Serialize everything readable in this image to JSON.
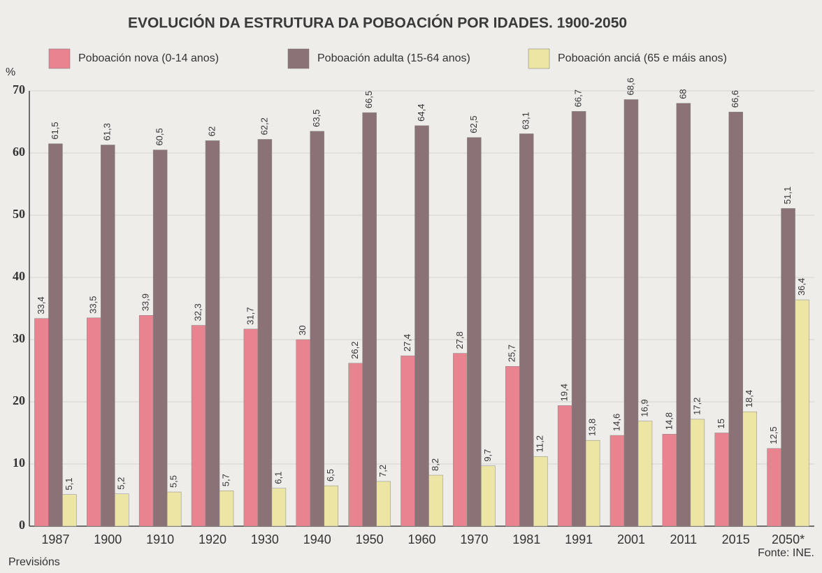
{
  "chart_data": {
    "type": "bar",
    "title": "EVOLUCIÓN DA ESTRUTURA DA POBOACIÓN POR IDADES. 1900-2050",
    "y_label": "%",
    "note": "Previsións",
    "source": "Fonte: INE.",
    "categories": [
      "1987",
      "1900",
      "1910",
      "1920",
      "1930",
      "1940",
      "1950",
      "1960",
      "1970",
      "1981",
      "1991",
      "2001",
      "2011",
      "2015",
      "2050*"
    ],
    "series": [
      {
        "name": "Poboación nova (0-14 anos)",
        "color": "#e8848f",
        "values": [
          33.4,
          33.5,
          33.9,
          32.3,
          31.7,
          30,
          26.2,
          27.4,
          27.8,
          25.7,
          19.4,
          14.6,
          14.8,
          15,
          12.5
        ],
        "value_labels": [
          "33,4",
          "33,5",
          "33,9",
          "32,3",
          "31,7",
          "30",
          "26,2",
          "27,4",
          "27,8",
          "25,7",
          "19,4",
          "14,6",
          "14,8",
          "15",
          "12,5"
        ]
      },
      {
        "name": "Poboación adulta (15-64 anos)",
        "color": "#8a7277",
        "values": [
          61.5,
          61.3,
          60.5,
          62,
          62.2,
          63.5,
          66.5,
          64.4,
          62.5,
          63.1,
          66.7,
          68.6,
          68,
          66.6,
          51.1
        ],
        "value_labels": [
          "61,5",
          "61,3",
          "60,5",
          "62",
          "62,2",
          "63,5",
          "66,5",
          "64,4",
          "62,5",
          "63,1",
          "66,7",
          "68,6",
          "68",
          "66,6",
          "51,1"
        ]
      },
      {
        "name": "Poboación anciá (65 e máis anos)",
        "color": "#ece5a4",
        "values": [
          5.1,
          5.2,
          5.5,
          5.7,
          6.1,
          6.5,
          7.2,
          8.2,
          9.7,
          11.2,
          13.8,
          16.9,
          17.2,
          18.4,
          36.4
        ],
        "value_labels": [
          "5,1",
          "5,2",
          "5,5",
          "5,7",
          "6,1",
          "6,5",
          "7,2",
          "8,2",
          "9,7",
          "11,2",
          "13,8",
          "16,9",
          "17,2",
          "18,4",
          "36,4"
        ]
      }
    ],
    "ylim": [
      0,
      70
    ],
    "yticks": [
      0,
      10,
      20,
      30,
      40,
      50,
      60,
      70
    ],
    "grid": true
  }
}
